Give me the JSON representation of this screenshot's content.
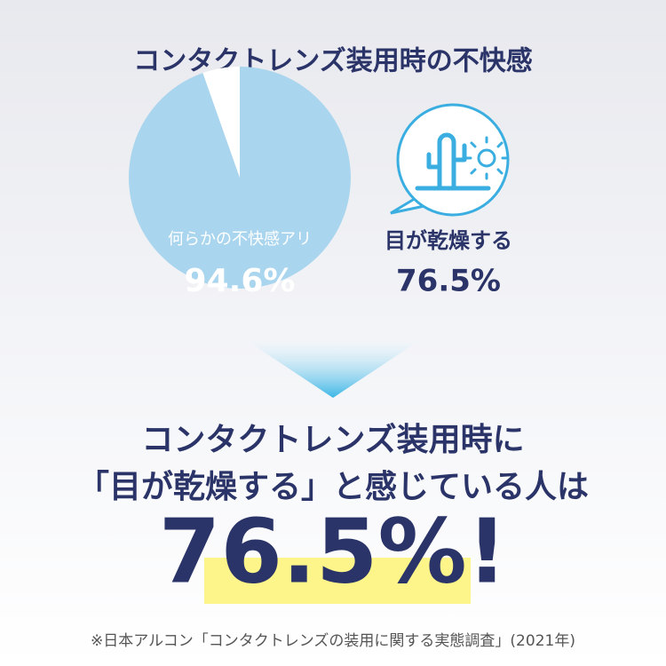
{
  "chart_data": {
    "type": "pie",
    "title": "コンタクトレンズ装用時の不快感",
    "categories": [
      "何らかの不快感アリ",
      null
    ],
    "values": [
      94.6,
      5.4
    ],
    "value_labels": [
      "94.6%",
      null
    ],
    "colors": [
      "#a9d5ee",
      "#ffffff"
    ]
  },
  "callout": {
    "label": "目が乾燥する",
    "value_label": "76.5%"
  },
  "conclusion": {
    "lines": [
      "コンタクトレンズ装用時に",
      "「目が乾燥する」と感じている人は"
    ],
    "highlight": "76.5%!"
  },
  "footnote": "※日本アルコン「コンタクトレンズの装用に関する実態調査」(2021年)"
}
